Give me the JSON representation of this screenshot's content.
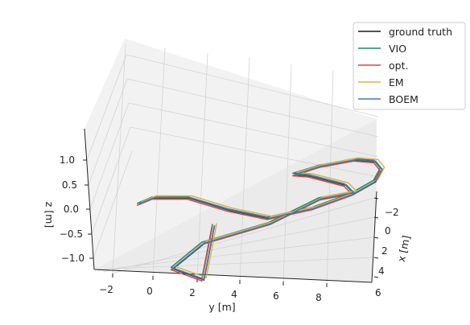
{
  "chart_data": {
    "type": "line",
    "projection": "3d",
    "xlabel": "x [m]",
    "ylabel": "y [m]",
    "zlabel": "z [m]",
    "x_ticks": [
      "−2",
      "0",
      "2",
      "4",
      "6"
    ],
    "y_ticks": [
      "−2",
      "0",
      "2",
      "4",
      "6",
      "8"
    ],
    "z_ticks": [
      "1.0",
      "0.5",
      "0.0",
      "−0.5",
      "−1.0"
    ],
    "xlim": [
      -3.5,
      6.5
    ],
    "ylim": [
      -2.8,
      9.8
    ],
    "zlim": [
      -1.3,
      1.5
    ],
    "grid": true,
    "legend_position": "top-right",
    "series": [
      {
        "name": "ground truth",
        "color": "#1a1a1a",
        "points": [
          [
            -2.6,
            -2.0,
            0.6
          ],
          [
            -2.0,
            -1.5,
            0.62
          ],
          [
            -1.5,
            0.0,
            0.55
          ],
          [
            -1.8,
            2.0,
            0.4
          ],
          [
            -2.2,
            4.0,
            0.35
          ],
          [
            -2.0,
            6.0,
            0.55
          ],
          [
            -1.2,
            7.5,
            0.7
          ],
          [
            0.0,
            8.2,
            0.75
          ],
          [
            1.5,
            8.0,
            0.7
          ],
          [
            3.0,
            7.2,
            0.55
          ],
          [
            3.8,
            6.0,
            0.4
          ],
          [
            3.5,
            4.5,
            0.3
          ],
          [
            2.8,
            3.5,
            0.25
          ],
          [
            2.0,
            4.5,
            0.4
          ],
          [
            1.0,
            6.5,
            0.45
          ],
          [
            0.0,
            7.2,
            0.5
          ],
          [
            -1.0,
            6.0,
            0.55
          ],
          [
            -2.0,
            4.0,
            0.2
          ],
          [
            -2.3,
            1.0,
            -0.2
          ],
          [
            -2.0,
            -0.5,
            -0.8
          ],
          [
            -1.5,
            0.8,
            -1.1
          ],
          [
            -2.4,
            1.5,
            0.2
          ]
        ]
      },
      {
        "name": "VIO",
        "color": "#1f8a60",
        "points": [
          [
            -2.6,
            -2.1,
            0.62
          ],
          [
            -2.0,
            -1.6,
            0.64
          ],
          [
            -1.5,
            -0.1,
            0.58
          ],
          [
            -1.8,
            1.9,
            0.43
          ],
          [
            -2.2,
            3.9,
            0.38
          ],
          [
            -2.0,
            5.9,
            0.58
          ],
          [
            -1.2,
            7.4,
            0.73
          ],
          [
            0.0,
            8.1,
            0.78
          ],
          [
            1.5,
            7.9,
            0.73
          ],
          [
            3.0,
            7.1,
            0.58
          ],
          [
            3.8,
            5.9,
            0.43
          ],
          [
            3.5,
            4.4,
            0.33
          ],
          [
            2.8,
            3.4,
            0.28
          ],
          [
            2.0,
            4.4,
            0.43
          ],
          [
            1.0,
            6.4,
            0.48
          ],
          [
            0.0,
            7.1,
            0.53
          ],
          [
            -1.0,
            5.9,
            0.58
          ],
          [
            -2.0,
            3.9,
            0.23
          ],
          [
            -2.3,
            0.9,
            -0.17
          ],
          [
            -2.0,
            -0.6,
            -0.77
          ],
          [
            -1.5,
            0.7,
            -1.07
          ],
          [
            -2.4,
            1.4,
            0.23
          ]
        ]
      },
      {
        "name": "opt.",
        "color": "#d9453d",
        "points": [
          [
            -2.6,
            -2.1,
            0.58
          ],
          [
            -2.0,
            -1.6,
            0.6
          ],
          [
            -1.5,
            -0.1,
            0.53
          ],
          [
            -1.8,
            1.9,
            0.38
          ],
          [
            -2.2,
            3.9,
            0.33
          ],
          [
            -2.0,
            5.9,
            0.53
          ],
          [
            -1.2,
            7.4,
            0.68
          ],
          [
            0.0,
            8.1,
            0.73
          ],
          [
            1.5,
            7.9,
            0.68
          ],
          [
            3.0,
            7.1,
            0.53
          ],
          [
            3.8,
            5.9,
            0.38
          ],
          [
            3.5,
            4.4,
            0.28
          ],
          [
            2.8,
            3.4,
            0.23
          ],
          [
            2.0,
            4.4,
            0.38
          ],
          [
            1.0,
            6.4,
            0.43
          ],
          [
            0.0,
            7.1,
            0.48
          ],
          [
            -1.0,
            5.9,
            0.53
          ],
          [
            -2.0,
            3.9,
            0.18
          ],
          [
            -2.3,
            0.9,
            -0.22
          ],
          [
            -2.0,
            -0.6,
            -0.82
          ],
          [
            -1.5,
            0.7,
            -1.12
          ],
          [
            -2.4,
            1.4,
            0.18
          ]
        ]
      },
      {
        "name": "EM",
        "color": "#ddb145",
        "points": [
          [
            -2.6,
            -1.9,
            0.65
          ],
          [
            -2.0,
            -1.4,
            0.67
          ],
          [
            -1.5,
            0.1,
            0.6
          ],
          [
            -1.8,
            2.1,
            0.45
          ],
          [
            -2.2,
            4.1,
            0.4
          ],
          [
            -2.0,
            6.1,
            0.6
          ],
          [
            -1.2,
            7.6,
            0.75
          ],
          [
            0.0,
            8.3,
            0.8
          ],
          [
            1.5,
            8.1,
            0.75
          ],
          [
            3.0,
            7.3,
            0.6
          ],
          [
            3.8,
            6.1,
            0.45
          ],
          [
            3.5,
            4.6,
            0.35
          ],
          [
            2.8,
            3.6,
            0.3
          ],
          [
            2.0,
            4.6,
            0.45
          ],
          [
            1.0,
            6.6,
            0.5
          ],
          [
            0.0,
            7.3,
            0.55
          ],
          [
            -1.0,
            6.1,
            0.6
          ],
          [
            -2.0,
            4.1,
            0.25
          ],
          [
            -2.3,
            1.1,
            -0.15
          ],
          [
            -2.0,
            -0.4,
            -0.75
          ],
          [
            -1.5,
            0.9,
            -1.05
          ],
          [
            -2.4,
            1.6,
            0.25
          ]
        ]
      },
      {
        "name": "BOEM",
        "color": "#3b78bd",
        "points": [
          [
            -2.6,
            -2.0,
            0.61
          ],
          [
            -2.0,
            -1.5,
            0.63
          ],
          [
            -1.5,
            0.0,
            0.56
          ],
          [
            -1.8,
            2.0,
            0.41
          ],
          [
            -2.2,
            4.0,
            0.36
          ],
          [
            -2.0,
            6.0,
            0.56
          ],
          [
            -1.2,
            7.5,
            0.71
          ],
          [
            0.0,
            8.2,
            0.76
          ],
          [
            1.5,
            8.0,
            0.71
          ],
          [
            3.0,
            7.2,
            0.56
          ],
          [
            3.8,
            6.0,
            0.41
          ],
          [
            3.5,
            4.5,
            0.31
          ],
          [
            2.8,
            3.5,
            0.26
          ],
          [
            2.0,
            4.5,
            0.41
          ],
          [
            1.0,
            6.5,
            0.46
          ],
          [
            0.0,
            7.2,
            0.51
          ],
          [
            -1.0,
            6.0,
            0.56
          ],
          [
            -2.0,
            4.0,
            0.21
          ],
          [
            -2.3,
            1.0,
            -0.19
          ],
          [
            -2.0,
            -0.5,
            -0.79
          ],
          [
            -1.5,
            0.8,
            -1.09
          ],
          [
            -2.4,
            1.5,
            0.21
          ]
        ]
      }
    ]
  }
}
